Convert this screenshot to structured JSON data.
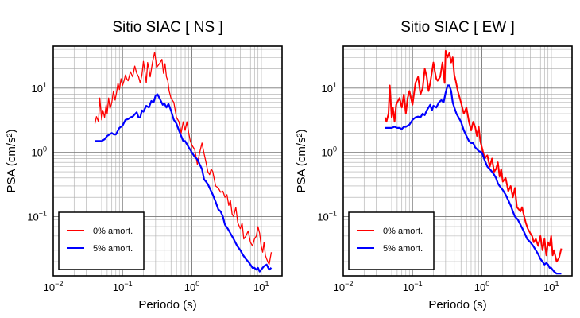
{
  "chart_data": [
    {
      "type": "line",
      "title": "Sitio SIAC [ NS ]",
      "xlabel": "Periodo (s)",
      "ylabel": "PSA (cm/s²)",
      "xscale": "log",
      "yscale": "log",
      "xlim": [
        0.01,
        20
      ],
      "ylim": [
        0.012,
        45
      ],
      "xticks": [
        {
          "value": 0.01,
          "base": "10",
          "exp": "−2"
        },
        {
          "value": 0.1,
          "base": "10",
          "exp": "−1"
        },
        {
          "value": 1,
          "base": "10",
          "exp": "0"
        },
        {
          "value": 10,
          "base": "10",
          "exp": "1"
        }
      ],
      "yticks": [
        {
          "value": 0.1,
          "base": "10",
          "exp": "−1"
        },
        {
          "value": 1,
          "base": "10",
          "exp": "0"
        },
        {
          "value": 10,
          "base": "10",
          "exp": "1"
        }
      ],
      "grid": true,
      "legend_position": "bottom-left",
      "series": [
        {
          "name": "0% amort.",
          "color": "#ff0000",
          "width": 1.3,
          "x": [
            0.04,
            0.042,
            0.045,
            0.047,
            0.05,
            0.052,
            0.055,
            0.058,
            0.06,
            0.063,
            0.066,
            0.07,
            0.074,
            0.078,
            0.082,
            0.086,
            0.09,
            0.095,
            0.1,
            0.105,
            0.11,
            0.115,
            0.12,
            0.13,
            0.14,
            0.15,
            0.16,
            0.17,
            0.18,
            0.19,
            0.2,
            0.21,
            0.22,
            0.23,
            0.24,
            0.25,
            0.27,
            0.29,
            0.3,
            0.31,
            0.33,
            0.35,
            0.37,
            0.39,
            0.41,
            0.43,
            0.45,
            0.47,
            0.5,
            0.55,
            0.6,
            0.65,
            0.7,
            0.75,
            0.8,
            0.85,
            0.9,
            0.95,
            1.0,
            1.1,
            1.2,
            1.3,
            1.4,
            1.5,
            1.6,
            1.7,
            1.8,
            1.9,
            2.0,
            2.2,
            2.4,
            2.6,
            2.8,
            3.0,
            3.2,
            3.4,
            3.6,
            3.8,
            4.0,
            4.3,
            4.6,
            5.0,
            5.3,
            5.6,
            6.0,
            6.5,
            7.0,
            7.5,
            8.0,
            8.5,
            9.0,
            9.5,
            10,
            10.5,
            11,
            11.5,
            12,
            13,
            14
          ],
          "y": [
            2.8,
            3.6,
            3.0,
            7.0,
            3.2,
            4.5,
            3.5,
            5.5,
            4.0,
            7.0,
            4.8,
            6.0,
            9.0,
            6.5,
            8.5,
            12,
            9.5,
            14,
            11,
            13,
            16,
            14,
            13,
            18,
            15,
            22,
            17,
            15,
            12,
            16,
            26,
            18,
            12,
            25,
            20,
            15,
            25,
            36,
            28,
            21,
            23,
            25,
            28,
            17,
            24,
            15,
            13,
            9,
            7,
            6,
            3.5,
            3.0,
            2.0,
            3.0,
            2.2,
            3.0,
            2.0,
            1.5,
            1.3,
            1.1,
            0.65,
            1.0,
            1.4,
            0.95,
            0.7,
            0.5,
            0.45,
            0.55,
            0.5,
            0.3,
            0.28,
            0.24,
            0.25,
            0.2,
            0.22,
            0.15,
            0.18,
            0.11,
            0.1,
            0.14,
            0.08,
            0.065,
            0.08,
            0.045,
            0.05,
            0.06,
            0.04,
            0.035,
            0.045,
            0.05,
            0.07,
            0.055,
            0.035,
            0.028,
            0.04,
            0.025,
            0.022,
            0.018,
            0.028
          ]
        },
        {
          "name": "5% amort.",
          "color": "#0000ff",
          "width": 2.2,
          "x": [
            0.04,
            0.045,
            0.05,
            0.055,
            0.06,
            0.065,
            0.07,
            0.075,
            0.08,
            0.09,
            0.1,
            0.11,
            0.12,
            0.13,
            0.14,
            0.15,
            0.16,
            0.17,
            0.18,
            0.19,
            0.2,
            0.22,
            0.24,
            0.26,
            0.28,
            0.3,
            0.32,
            0.34,
            0.36,
            0.38,
            0.4,
            0.43,
            0.46,
            0.5,
            0.55,
            0.6,
            0.65,
            0.7,
            0.75,
            0.8,
            0.9,
            1.0,
            1.1,
            1.2,
            1.3,
            1.4,
            1.5,
            1.6,
            1.7,
            1.8,
            2.0,
            2.2,
            2.4,
            2.6,
            2.8,
            3.0,
            3.3,
            3.6,
            4.0,
            4.5,
            5.0,
            5.5,
            6.0,
            6.5,
            7.0,
            7.5,
            8.0,
            8.5,
            9.0,
            9.5,
            10,
            11,
            12,
            13,
            14
          ],
          "y": [
            1.5,
            1.5,
            1.5,
            1.6,
            1.8,
            1.9,
            2.0,
            1.9,
            1.9,
            2.4,
            2.6,
            3.2,
            3.3,
            3.5,
            3.6,
            3.9,
            4.2,
            3.5,
            3.5,
            4.5,
            4.3,
            5.3,
            5.0,
            6.3,
            6.0,
            7.7,
            8.0,
            7.0,
            6.2,
            5.5,
            5.8,
            5.0,
            5.7,
            4.5,
            3.2,
            2.8,
            2.2,
            1.8,
            1.5,
            1.5,
            1.2,
            1.0,
            0.85,
            0.78,
            0.65,
            0.55,
            0.38,
            0.35,
            0.32,
            0.28,
            0.22,
            0.17,
            0.13,
            0.12,
            0.1,
            0.075,
            0.065,
            0.055,
            0.045,
            0.035,
            0.03,
            0.025,
            0.022,
            0.02,
            0.018,
            0.016,
            0.016,
            0.015,
            0.016,
            0.014,
            0.015,
            0.017,
            0.018,
            0.015,
            0.016
          ]
        }
      ],
      "legend": {
        "entries": [
          "0% amort.",
          "5% amort."
        ]
      }
    },
    {
      "type": "line",
      "title": "Sitio SIAC [ EW ]",
      "xlabel": "Periodo (s)",
      "ylabel": "PSA (cm/s²)",
      "xscale": "log",
      "yscale": "log",
      "xlim": [
        0.01,
        20
      ],
      "ylim": [
        0.012,
        45
      ],
      "xticks": [
        {
          "value": 0.01,
          "base": "10",
          "exp": "−2"
        },
        {
          "value": 0.1,
          "base": "10",
          "exp": "−1"
        },
        {
          "value": 1,
          "base": "10",
          "exp": "0"
        },
        {
          "value": 10,
          "base": "10",
          "exp": "1"
        }
      ],
      "yticks": [
        {
          "value": 0.1,
          "base": "10",
          "exp": "−1"
        },
        {
          "value": 1,
          "base": "10",
          "exp": "0"
        },
        {
          "value": 10,
          "base": "10",
          "exp": "1"
        }
      ],
      "grid": true,
      "legend_position": "bottom-left",
      "series": [
        {
          "name": "0% amort.",
          "color": "#ff0000",
          "width": 2.0,
          "x": [
            0.04,
            0.042,
            0.045,
            0.047,
            0.05,
            0.052,
            0.055,
            0.058,
            0.06,
            0.065,
            0.07,
            0.075,
            0.08,
            0.085,
            0.09,
            0.1,
            0.11,
            0.12,
            0.13,
            0.14,
            0.15,
            0.16,
            0.17,
            0.18,
            0.2,
            0.21,
            0.22,
            0.23,
            0.25,
            0.27,
            0.29,
            0.3,
            0.32,
            0.34,
            0.36,
            0.38,
            0.4,
            0.42,
            0.45,
            0.5,
            0.55,
            0.6,
            0.65,
            0.7,
            0.75,
            0.8,
            0.85,
            0.9,
            0.95,
            1.0,
            1.1,
            1.2,
            1.3,
            1.4,
            1.5,
            1.6,
            1.7,
            1.8,
            1.9,
            2.0,
            2.2,
            2.4,
            2.6,
            2.8,
            3.0,
            3.2,
            3.4,
            3.6,
            3.8,
            4.0,
            4.3,
            4.6,
            5.0,
            5.3,
            5.6,
            6.0,
            6.5,
            7.0,
            7.5,
            8.0,
            8.5,
            9.0,
            9.5,
            10,
            10.5,
            11,
            12,
            13,
            14
          ],
          "y": [
            3.5,
            3.0,
            4.0,
            11.0,
            3.5,
            5.0,
            3.0,
            5.5,
            6.0,
            7.0,
            5.0,
            8.0,
            4.0,
            7.0,
            9.0,
            5.5,
            12,
            15,
            8,
            10,
            20,
            15,
            9,
            12,
            25,
            18,
            14,
            13,
            15,
            25,
            12,
            38,
            30,
            35,
            25,
            30,
            16,
            13,
            9,
            6,
            4,
            5,
            3,
            2.2,
            3,
            2.5,
            1.8,
            2.5,
            1.5,
            1.2,
            0.8,
            0.9,
            0.6,
            0.8,
            0.5,
            0.55,
            0.7,
            0.42,
            0.55,
            0.35,
            0.4,
            0.25,
            0.3,
            0.2,
            0.28,
            0.14,
            0.13,
            0.12,
            0.14,
            0.11,
            0.08,
            0.065,
            0.055,
            0.05,
            0.04,
            0.045,
            0.035,
            0.05,
            0.03,
            0.045,
            0.025,
            0.04,
            0.035,
            0.05,
            0.025,
            0.03,
            0.02,
            0.023,
            0.032
          ]
        },
        {
          "name": "5% amort.",
          "color": "#0000ff",
          "width": 2.2,
          "x": [
            0.04,
            0.045,
            0.05,
            0.055,
            0.06,
            0.065,
            0.07,
            0.075,
            0.08,
            0.09,
            0.1,
            0.11,
            0.12,
            0.13,
            0.14,
            0.15,
            0.16,
            0.17,
            0.18,
            0.19,
            0.2,
            0.22,
            0.24,
            0.26,
            0.28,
            0.3,
            0.32,
            0.34,
            0.36,
            0.38,
            0.4,
            0.43,
            0.46,
            0.5,
            0.55,
            0.6,
            0.65,
            0.7,
            0.75,
            0.8,
            0.9,
            1.0,
            1.1,
            1.2,
            1.3,
            1.4,
            1.5,
            1.6,
            1.7,
            1.8,
            2.0,
            2.2,
            2.4,
            2.6,
            2.8,
            3.0,
            3.3,
            3.6,
            4.0,
            4.5,
            5.0,
            5.5,
            6.0,
            6.5,
            7.0,
            7.5,
            8.0,
            8.5,
            9.0,
            9.5,
            10,
            11,
            12,
            13,
            14
          ],
          "y": [
            2.4,
            2.4,
            2.4,
            2.5,
            2.4,
            2.4,
            2.3,
            2.5,
            2.5,
            2.7,
            3.2,
            3.5,
            3.6,
            3.5,
            4.0,
            3.8,
            4.5,
            5.0,
            5.5,
            4.5,
            5.3,
            5.0,
            6.0,
            6.5,
            6.0,
            8.5,
            11,
            11,
            9,
            6,
            5,
            4,
            3.5,
            3.0,
            2.2,
            1.8,
            1.5,
            1.4,
            1.4,
            1.2,
            1.05,
            1.0,
            0.75,
            0.6,
            0.55,
            0.5,
            0.45,
            0.4,
            0.33,
            0.3,
            0.26,
            0.22,
            0.18,
            0.15,
            0.12,
            0.1,
            0.09,
            0.075,
            0.06,
            0.045,
            0.04,
            0.035,
            0.03,
            0.026,
            0.022,
            0.02,
            0.018,
            0.019,
            0.018,
            0.016,
            0.016,
            0.014,
            0.013,
            0.013,
            0.013
          ]
        }
      ],
      "legend": {
        "entries": [
          "0% amort.",
          "5% amort."
        ]
      }
    }
  ]
}
